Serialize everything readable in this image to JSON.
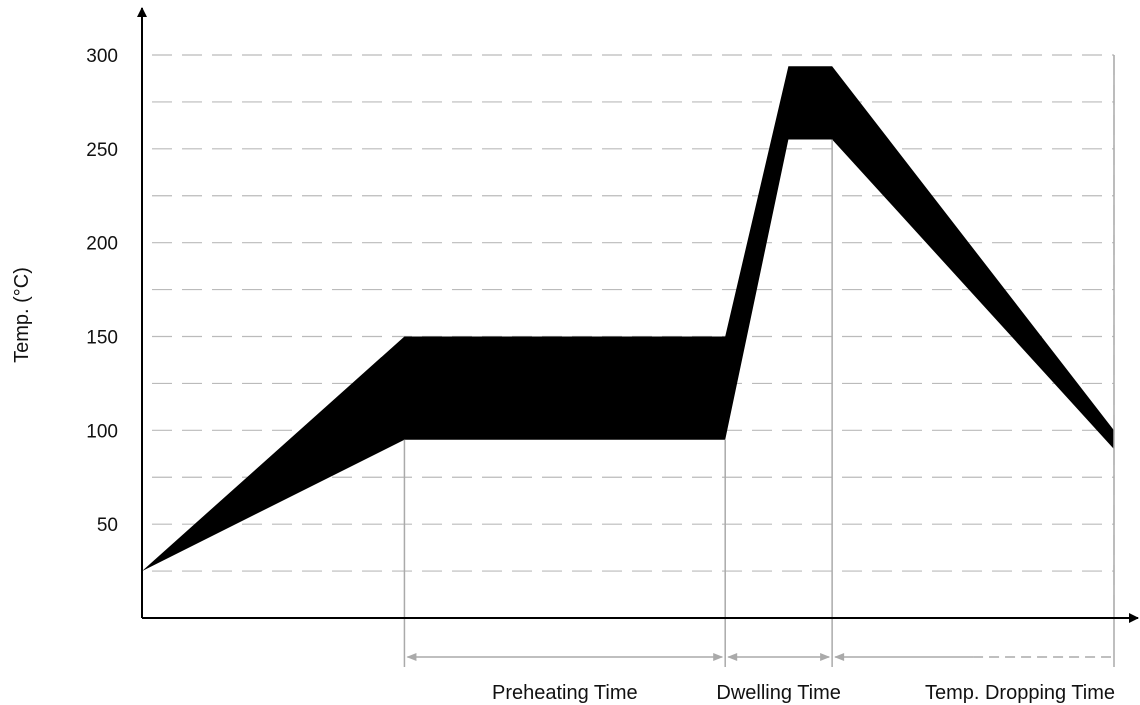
{
  "chart_data": {
    "type": "area",
    "title": "",
    "ylabel": "Temp. (°C)",
    "xlabel": "",
    "ylim": [
      0,
      300
    ],
    "yticks": [
      50,
      100,
      150,
      200,
      250,
      300
    ],
    "y_gridlines": [
      25,
      50,
      75,
      100,
      125,
      150,
      175,
      200,
      225,
      250,
      275,
      300
    ],
    "grid": true,
    "colors": {
      "band": "#000000",
      "grid": "#bbbbbb",
      "phase_marker": "#aaaaaa",
      "axis": "#000000"
    },
    "band": {
      "upper": [
        {
          "t": 0,
          "temp": 25
        },
        {
          "t": 0.27,
          "temp": 150
        },
        {
          "t": 0.6,
          "temp": 150
        },
        {
          "t": 0.665,
          "temp": 294
        },
        {
          "t": 0.71,
          "temp": 294
        },
        {
          "t": 1.0,
          "temp": 100
        }
      ],
      "lower": [
        {
          "t": 0,
          "temp": 25
        },
        {
          "t": 0.27,
          "temp": 95
        },
        {
          "t": 0.6,
          "temp": 95
        },
        {
          "t": 0.665,
          "temp": 255
        },
        {
          "t": 0.71,
          "temp": 255
        },
        {
          "t": 1.0,
          "temp": 90
        }
      ]
    },
    "phase_boundaries": [
      0.27,
      0.6,
      0.71,
      1.0
    ],
    "phases": [
      {
        "label": "Preheating Time",
        "start": 0.27,
        "end": 0.6
      },
      {
        "label": "Dwelling Time",
        "start": 0.6,
        "end": 0.71
      },
      {
        "label": "Temp. Dropping Time",
        "start": 0.71,
        "end": 1.0
      }
    ]
  }
}
